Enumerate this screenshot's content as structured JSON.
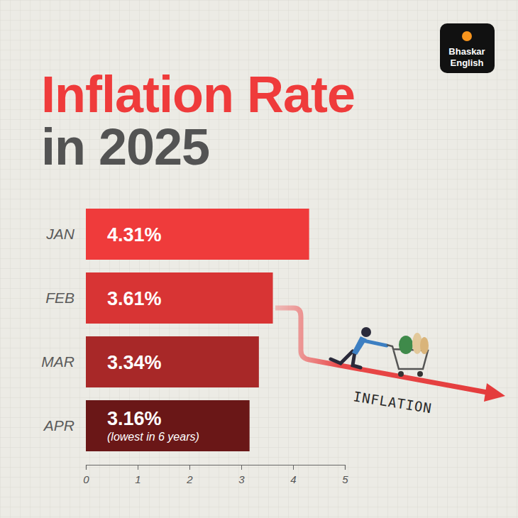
{
  "chart_data": {
    "type": "bar",
    "title": "Inflation Rate",
    "subtitle": "in 2025",
    "orientation": "horizontal",
    "categories": [
      "JAN",
      "FEB",
      "MAR",
      "APR"
    ],
    "values": [
      4.31,
      3.61,
      3.34,
      3.16
    ],
    "value_labels": [
      "4.31%",
      "3.61%",
      "3.34%",
      "3.16%"
    ],
    "colors": [
      "#ef3b3b",
      "#d83434",
      "#a82828",
      "#6a1717"
    ],
    "data_labels": true,
    "xlim": [
      0,
      5
    ],
    "xticks": [
      0,
      1,
      2,
      3,
      4,
      5
    ],
    "grid": false,
    "annotations": [
      {
        "text": "(lowest in 6 years)",
        "category": "APR"
      },
      {
        "text": "INFLATION"
      },
      {
        "text": "Bhaskar English"
      }
    ]
  }
}
